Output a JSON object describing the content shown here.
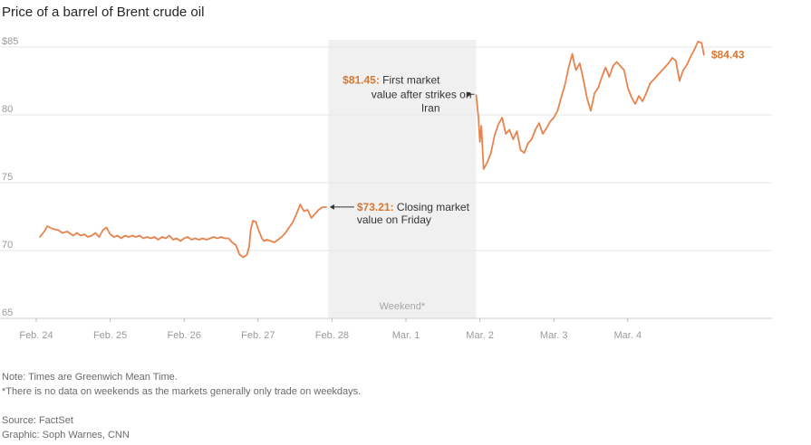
{
  "title": "Price of a barrel of Brent crude oil",
  "colors": {
    "line": "#e8834d",
    "annotation_value": "#d9772f",
    "grid": "#e6e6e6",
    "axis_text": "#9a9a9a",
    "weekend_shade": "#f0f0f0"
  },
  "chart_data": {
    "type": "line",
    "title": "Price of a barrel of Brent crude oil",
    "x_unit": "days since Feb. 24 00:00 GMT",
    "x_tick_labels": [
      "Feb. 24",
      "Feb. 25",
      "Feb. 26",
      "Feb. 27",
      "Feb. 28",
      "Mar. 1",
      "Mar. 2",
      "Mar. 3",
      "Mar. 4"
    ],
    "y_ticks": [
      {
        "value": 65,
        "label": "65"
      },
      {
        "value": 70,
        "label": "70"
      },
      {
        "value": 75,
        "label": "75"
      },
      {
        "value": 80,
        "label": "80"
      },
      {
        "value": 85,
        "label": "$85"
      }
    ],
    "ylim": [
      65,
      86
    ],
    "grid": true,
    "weekend_band": {
      "start": 3.95,
      "end": 5.95,
      "label": "Weekend*"
    },
    "series": [
      {
        "points": [
          [
            0.05,
            71.0
          ],
          [
            0.12,
            71.5
          ],
          [
            0.15,
            71.8
          ],
          [
            0.22,
            71.6
          ],
          [
            0.3,
            71.5
          ],
          [
            0.35,
            71.3
          ],
          [
            0.42,
            71.4
          ],
          [
            0.5,
            71.1
          ],
          [
            0.55,
            71.3
          ],
          [
            0.6,
            71.1
          ],
          [
            0.65,
            71.2
          ],
          [
            0.7,
            71.0
          ],
          [
            0.75,
            71.1
          ],
          [
            0.8,
            71.3
          ],
          [
            0.85,
            71.0
          ],
          [
            0.9,
            71.5
          ],
          [
            0.95,
            71.7
          ],
          [
            1.0,
            71.2
          ],
          [
            1.05,
            71.0
          ],
          [
            1.1,
            71.1
          ],
          [
            1.15,
            70.9
          ],
          [
            1.2,
            71.1
          ],
          [
            1.25,
            71.0
          ],
          [
            1.3,
            71.1
          ],
          [
            1.35,
            71.0
          ],
          [
            1.4,
            71.1
          ],
          [
            1.45,
            70.9
          ],
          [
            1.5,
            71.0
          ],
          [
            1.55,
            70.9
          ],
          [
            1.6,
            71.0
          ],
          [
            1.65,
            70.8
          ],
          [
            1.7,
            71.0
          ],
          [
            1.75,
            70.9
          ],
          [
            1.8,
            71.1
          ],
          [
            1.85,
            70.8
          ],
          [
            1.9,
            70.9
          ],
          [
            1.95,
            70.7
          ],
          [
            2.0,
            70.9
          ],
          [
            2.05,
            71.0
          ],
          [
            2.1,
            70.8
          ],
          [
            2.15,
            70.9
          ],
          [
            2.2,
            70.8
          ],
          [
            2.25,
            70.9
          ],
          [
            2.3,
            70.8
          ],
          [
            2.35,
            70.9
          ],
          [
            2.4,
            71.0
          ],
          [
            2.45,
            70.9
          ],
          [
            2.5,
            71.0
          ],
          [
            2.55,
            70.9
          ],
          [
            2.6,
            70.9
          ],
          [
            2.65,
            70.6
          ],
          [
            2.7,
            70.4
          ],
          [
            2.75,
            69.7
          ],
          [
            2.8,
            69.5
          ],
          [
            2.85,
            69.7
          ],
          [
            2.88,
            70.3
          ],
          [
            2.9,
            71.5
          ],
          [
            2.93,
            72.2
          ],
          [
            2.97,
            72.1
          ],
          [
            3.0,
            71.6
          ],
          [
            3.03,
            71.2
          ],
          [
            3.05,
            70.9
          ],
          [
            3.08,
            70.7
          ],
          [
            3.12,
            70.8
          ],
          [
            3.17,
            70.7
          ],
          [
            3.22,
            70.6
          ],
          [
            3.27,
            70.8
          ],
          [
            3.32,
            71.0
          ],
          [
            3.37,
            71.3
          ],
          [
            3.42,
            71.7
          ],
          [
            3.47,
            72.1
          ],
          [
            3.52,
            72.7
          ],
          [
            3.57,
            73.4
          ],
          [
            3.62,
            72.9
          ],
          [
            3.67,
            73.0
          ],
          [
            3.72,
            72.4
          ],
          [
            3.77,
            72.7
          ],
          [
            3.82,
            73.0
          ],
          [
            3.87,
            73.2
          ],
          [
            3.92,
            73.21
          ]
        ]
      },
      {
        "points": [
          [
            5.95,
            81.45
          ],
          [
            5.98,
            79.8
          ],
          [
            6.0,
            78.0
          ],
          [
            6.02,
            79.2
          ],
          [
            6.05,
            76.0
          ],
          [
            6.1,
            76.5
          ],
          [
            6.15,
            77.2
          ],
          [
            6.2,
            78.5
          ],
          [
            6.25,
            79.3
          ],
          [
            6.3,
            79.8
          ],
          [
            6.35,
            78.6
          ],
          [
            6.4,
            78.9
          ],
          [
            6.45,
            78.2
          ],
          [
            6.5,
            78.8
          ],
          [
            6.55,
            77.4
          ],
          [
            6.6,
            77.2
          ],
          [
            6.65,
            77.9
          ],
          [
            6.7,
            78.2
          ],
          [
            6.75,
            78.9
          ],
          [
            6.8,
            79.4
          ],
          [
            6.85,
            78.6
          ],
          [
            6.9,
            79.0
          ],
          [
            6.95,
            79.5
          ],
          [
            7.0,
            79.8
          ],
          [
            7.05,
            80.3
          ],
          [
            7.1,
            81.3
          ],
          [
            7.15,
            82.2
          ],
          [
            7.2,
            83.5
          ],
          [
            7.25,
            84.5
          ],
          [
            7.28,
            83.7
          ],
          [
            7.3,
            83.3
          ],
          [
            7.35,
            83.8
          ],
          [
            7.4,
            82.6
          ],
          [
            7.45,
            81.2
          ],
          [
            7.5,
            80.3
          ],
          [
            7.55,
            81.6
          ],
          [
            7.6,
            82.0
          ],
          [
            7.65,
            82.8
          ],
          [
            7.7,
            83.5
          ],
          [
            7.75,
            82.8
          ],
          [
            7.8,
            83.6
          ],
          [
            7.85,
            83.9
          ],
          [
            7.9,
            83.6
          ],
          [
            7.95,
            83.3
          ],
          [
            8.0,
            82.0
          ],
          [
            8.05,
            81.3
          ],
          [
            8.1,
            80.8
          ],
          [
            8.15,
            81.4
          ],
          [
            8.2,
            81.0
          ],
          [
            8.25,
            81.6
          ],
          [
            8.3,
            82.3
          ],
          [
            8.35,
            82.6
          ],
          [
            8.4,
            82.9
          ],
          [
            8.45,
            83.2
          ],
          [
            8.5,
            83.5
          ],
          [
            8.55,
            83.8
          ],
          [
            8.6,
            84.2
          ],
          [
            8.65,
            84.0
          ],
          [
            8.7,
            82.5
          ],
          [
            8.75,
            83.3
          ],
          [
            8.8,
            83.7
          ],
          [
            8.85,
            84.3
          ],
          [
            8.9,
            84.8
          ],
          [
            8.95,
            85.4
          ],
          [
            9.0,
            85.3
          ],
          [
            9.03,
            84.43
          ]
        ]
      }
    ],
    "annotations": [
      {
        "value_label": "$73.21:",
        "text_lines": [
          "Closing market",
          "value on Friday"
        ]
      },
      {
        "value_label": "$81.45:",
        "text_lines": [
          "First market",
          "value after strikes on",
          "Iran"
        ]
      }
    ],
    "end_label": "$84.43"
  },
  "notes": {
    "line1": "Note: Times are Greenwich Mean Time.",
    "line2": "*There is no data on weekends as the markets generally only trade on weekdays."
  },
  "source": "Source: FactSet",
  "credit": "Graphic: Soph Warnes, CNN"
}
